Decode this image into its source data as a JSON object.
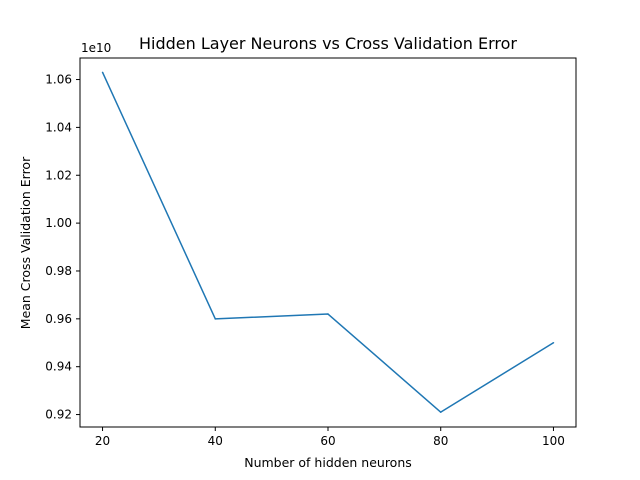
{
  "chart_data": {
    "type": "line",
    "title": "Hidden Layer Neurons vs Cross Validation Error",
    "xlabel": "Number of hidden neurons",
    "ylabel": "Mean Cross Validation Error",
    "y_offset_label": "1e10",
    "xlim": [
      16,
      104
    ],
    "ylim": [
      0.9148,
      1.069
    ],
    "x_ticks": [
      20,
      40,
      60,
      80,
      100
    ],
    "x_tick_labels": [
      "20",
      "40",
      "60",
      "80",
      "100"
    ],
    "y_ticks": [
      0.92,
      0.94,
      0.96,
      0.98,
      1.0,
      1.02,
      1.04,
      1.06
    ],
    "y_tick_labels": [
      "0.92",
      "0.94",
      "0.96",
      "0.98",
      "1.00",
      "1.02",
      "1.04",
      "1.06"
    ],
    "grid": false,
    "series": [
      {
        "color": "#1f77b4",
        "x": [
          20,
          40,
          60,
          80,
          100
        ],
        "y": [
          1.063,
          0.96,
          0.962,
          0.921,
          0.95
        ]
      }
    ]
  }
}
